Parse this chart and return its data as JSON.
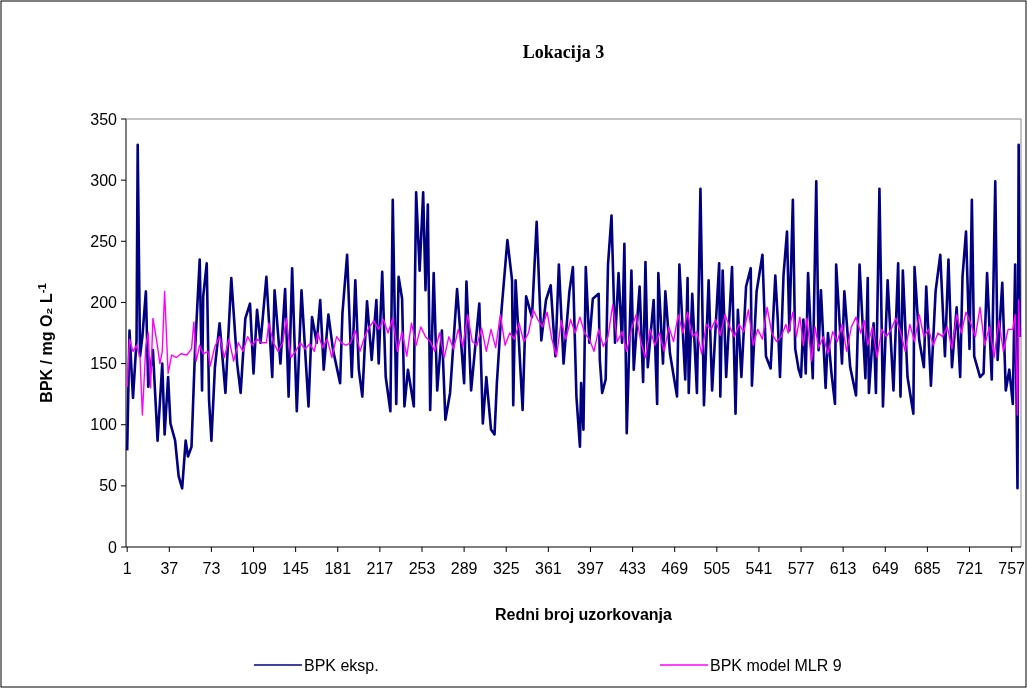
{
  "chart_data": {
    "type": "line",
    "title": "Lokacija 3",
    "xlabel": "Redni broj uzorkovanja",
    "ylabel": "BPK /  mg O₂ L$^{-1}$",
    "xlim": [
      0,
      765
    ],
    "xticks": [
      1,
      37,
      73,
      109,
      145,
      181,
      217,
      253,
      289,
      325,
      361,
      397,
      433,
      469,
      505,
      541,
      577,
      613,
      649,
      685,
      721,
      757
    ],
    "ylim": [
      0,
      350
    ],
    "yticks": [
      0,
      50,
      100,
      150,
      200,
      250,
      300,
      350
    ],
    "legend": "bottom",
    "marker": "none",
    "line_style": "solid",
    "series": [
      {
        "name": "BPK eksp.",
        "color": "#000080",
        "x": [
          1,
          3,
          5,
          6,
          9,
          10,
          12,
          14,
          17,
          19,
          23,
          27,
          31,
          33,
          36,
          38,
          42,
          45,
          48,
          51,
          53,
          56,
          59,
          63,
          65,
          66,
          69,
          71,
          73,
          76,
          80,
          85,
          90,
          95,
          98,
          102,
          106,
          109,
          112,
          115,
          120,
          125,
          127,
          132,
          136,
          139,
          142,
          146,
          150,
          156,
          159,
          163,
          166,
          169,
          173,
          177,
          183,
          185,
          189,
          193,
          196,
          199,
          202,
          206,
          210,
          214,
          216,
          219,
          222,
          226,
          228,
          231,
          233,
          236,
          238,
          241,
          246,
          247,
          248,
          251,
          254,
          256,
          258,
          260,
          263,
          266,
          270,
          273,
          277,
          283,
          289,
          291,
          295,
          302,
          305,
          308,
          312,
          315,
          317,
          321,
          326,
          330,
          331,
          333,
          339,
          342,
          347,
          351,
          355,
          359,
          363,
          367,
          370,
          374,
          379,
          382,
          385,
          388,
          389,
          391,
          393,
          396,
          399,
          404,
          405,
          407,
          410,
          412,
          415,
          418,
          421,
          424,
          426,
          428,
          432,
          434,
          439,
          442,
          444,
          446,
          451,
          454,
          455,
          459,
          461,
          465,
          471,
          473,
          478,
          480,
          481,
          484,
          488,
          491,
          494,
          498,
          501,
          507,
          508,
          510,
          513,
          518,
          521,
          523,
          526,
          530,
          534,
          535,
          539,
          544,
          547,
          551,
          555,
          557,
          559,
          562,
          565,
          567,
          570,
          572,
          575,
          577,
          579,
          581,
          583,
          587,
          590,
          592,
          594,
          598,
          600,
          603,
          606,
          607,
          612,
          614,
          619,
          624,
          627,
          632,
          634,
          635,
          639,
          641,
          644,
          647,
          651,
          656,
          660,
          662,
          664,
          668,
          673,
          674,
          678,
          682,
          684,
          688,
          692,
          696,
          700,
          703,
          706,
          710,
          713,
          715,
          718,
          721,
          723,
          725,
          730,
          733,
          736,
          740,
          743,
          745,
          749,
          752,
          755,
          758,
          760,
          762,
          763,
          764
        ],
        "values": [
          79,
          177,
          139,
          122,
          169,
          329,
          156,
          172,
          209,
          131,
          161,
          87,
          150,
          92,
          139,
          101,
          87,
          58,
          48,
          87,
          74,
          82,
          161,
          235,
          128,
          205,
          232,
          120,
          87,
          147,
          183,
          126,
          220,
          150,
          126,
          187,
          199,
          142,
          194,
          167,
          221,
          139,
          210,
          150,
          211,
          123,
          228,
          111,
          210,
          115,
          188,
          167,
          202,
          145,
          190,
          161,
          134,
          191,
          239,
          139,
          218,
          145,
          123,
          201,
          153,
          202,
          150,
          225,
          139,
          111,
          284,
          117,
          221,
          203,
          115,
          145,
          115,
          216,
          290,
          226,
          290,
          210,
          280,
          112,
          224,
          128,
          177,
          104,
          126,
          211,
          134,
          217,
          128,
          199,
          101,
          139,
          96,
          92,
          134,
          194,
          251,
          218,
          116,
          218,
          112,
          205,
          188,
          266,
          169,
          202,
          214,
          156,
          231,
          150,
          209,
          229,
          123,
          82,
          134,
          96,
          229,
          167,
          203,
          207,
          153,
          126,
          137,
          231,
          271,
          167,
          224,
          167,
          248,
          93,
          226,
          145,
          213,
          135,
          233,
          147,
          202,
          117,
          224,
          150,
          209,
          158,
          123,
          231,
          137,
          220,
          126,
          207,
          126,
          293,
          116,
          218,
          128,
          232,
          123,
          226,
          139,
          229,
          109,
          194,
          139,
          213,
          228,
          132,
          209,
          239,
          156,
          146,
          222,
          188,
          139,
          222,
          258,
          177,
          284,
          162,
          145,
          139,
          186,
          142,
          224,
          138,
          299,
          161,
          210,
          130,
          175,
          142,
          117,
          231,
          150,
          209,
          147,
          124,
          231,
          138,
          220,
          126,
          183,
          126,
          293,
          115,
          218,
          128,
          232,
          123,
          226,
          139,
          109,
          229,
          169,
          147,
          213,
          132,
          209,
          239,
          156,
          235,
          147,
          196,
          139,
          221,
          258,
          162,
          284,
          156,
          139,
          142,
          224,
          137,
          299,
          153,
          216,
          128,
          145,
          117,
          231,
          48,
          329,
          172
        ]
      },
      {
        "name": "BPK model MLR 9",
        "color": "#ff00ff",
        "x": [
          1,
          3,
          6,
          9,
          12,
          14,
          17,
          19,
          21,
          23,
          26,
          29,
          31,
          33,
          36,
          39,
          43,
          47,
          52,
          56,
          58,
          60,
          63,
          66,
          70,
          72,
          76,
          80,
          84,
          88,
          92,
          96,
          100,
          104,
          108,
          112,
          116,
          120,
          122,
          126,
          130,
          134,
          137,
          141,
          145,
          149,
          153,
          157,
          161,
          164,
          168,
          172,
          176,
          180,
          184,
          188,
          192,
          196,
          200,
          204,
          208,
          212,
          216,
          220,
          224,
          228,
          232,
          236,
          240,
          244,
          248,
          252,
          256,
          260,
          264,
          268,
          272,
          276,
          280,
          284,
          288,
          292,
          296,
          300,
          304,
          308,
          312,
          316,
          320,
          324,
          328,
          332,
          336,
          340,
          344,
          348,
          352,
          356,
          360,
          364,
          368,
          372,
          376,
          380,
          384,
          388,
          392,
          396,
          400,
          404,
          408,
          412,
          416,
          420,
          424,
          428,
          432,
          436,
          440,
          444,
          448,
          452,
          456,
          460,
          464,
          468,
          472,
          476,
          480,
          484,
          488,
          492,
          496,
          500,
          504,
          508,
          512,
          516,
          520,
          524,
          528,
          532,
          536,
          540,
          544,
          548,
          552,
          556,
          560,
          564,
          566,
          570,
          573,
          576,
          579,
          582,
          586,
          589,
          592,
          596,
          600,
          604,
          608,
          612,
          616,
          620,
          624,
          628,
          631,
          634,
          638,
          642,
          646,
          650,
          654,
          658,
          662,
          666,
          670,
          674,
          678,
          682,
          686,
          690,
          694,
          698,
          702,
          706,
          710,
          714,
          718,
          722,
          726,
          730,
          734,
          738,
          742,
          746,
          750,
          754,
          758,
          760,
          762,
          763,
          764
        ],
        "values": [
          131,
          170,
          160,
          165,
          155,
          108,
          165,
          175,
          130,
          187,
          170,
          150,
          160,
          209,
          142,
          157,
          155,
          158,
          157,
          162,
          184,
          152,
          165,
          158,
          160,
          148,
          164,
          172,
          155,
          170,
          152,
          167,
          160,
          172,
          165,
          170,
          167,
          167,
          183,
          167,
          160,
          167,
          187,
          155,
          160,
          167,
          162,
          166,
          160,
          175,
          163,
          170,
          155,
          172,
          167,
          165,
          167,
          177,
          160,
          172,
          180,
          185,
          178,
          186,
          175,
          187,
          160,
          176,
          156,
          183,
          165,
          180,
          172,
          168,
          160,
          175,
          155,
          172,
          162,
          178,
          164,
          190,
          168,
          165,
          179,
          160,
          178,
          163,
          190,
          165,
          175,
          170,
          183,
          168,
          175,
          194,
          186,
          180,
          192,
          170,
          156,
          185,
          170,
          186,
          175,
          188,
          175,
          170,
          160,
          178,
          164,
          172,
          198,
          168,
          176,
          160,
          178,
          190,
          168,
          155,
          178,
          165,
          175,
          160,
          180,
          168,
          190,
          175,
          192,
          172,
          176,
          158,
          182,
          178,
          186,
          173,
          190,
          180,
          172,
          182,
          176,
          194,
          165,
          178,
          170,
          196,
          175,
          168,
          172,
          182,
          175,
          192,
          172,
          188,
          165,
          187,
          152,
          180,
          163,
          172,
          158,
          176,
          168,
          182,
          160,
          180,
          188,
          175,
          185,
          165,
          180,
          155,
          178,
          172,
          178,
          187,
          176,
          160,
          182,
          168,
          190,
          172,
          178,
          165,
          175,
          172,
          180,
          162,
          190,
          175,
          192,
          183,
          172,
          196,
          165,
          180,
          155,
          185,
          160,
          178,
          178,
          190,
          108,
          202,
          172
        ]
      }
    ]
  }
}
